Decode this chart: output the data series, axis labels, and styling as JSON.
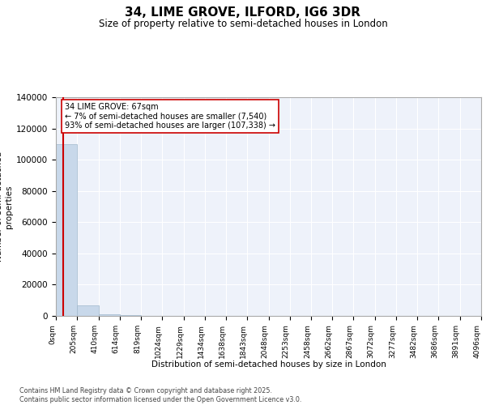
{
  "title": "34, LIME GROVE, ILFORD, IG6 3DR",
  "subtitle": "Size of property relative to semi-detached houses in London",
  "xlabel": "Distribution of semi-detached houses by size in London",
  "ylabel": "Number of semi-detached\nproperties",
  "bin_edges": [
    0,
    205,
    410,
    614,
    819,
    1024,
    1229,
    1434,
    1638,
    1843,
    2048,
    2253,
    2458,
    2662,
    2867,
    3072,
    3277,
    3482,
    3686,
    3891,
    4096
  ],
  "bar_heights": [
    110000,
    7000,
    1200,
    350,
    150,
    80,
    50,
    35,
    25,
    18,
    13,
    10,
    8,
    7,
    6,
    5,
    4,
    3,
    3,
    2
  ],
  "bar_color": "#c8d8ea",
  "bar_edge_color": "#a0b8cc",
  "property_size": 67,
  "property_line_color": "#cc0000",
  "annotation_text": "34 LIME GROVE: 67sqm\n← 7% of semi-detached houses are smaller (7,540)\n93% of semi-detached houses are larger (107,338) →",
  "annotation_box_color": "#ffffff",
  "annotation_border_color": "#cc0000",
  "ylim": [
    0,
    140000
  ],
  "yticks": [
    0,
    20000,
    40000,
    60000,
    80000,
    100000,
    120000,
    140000
  ],
  "background_color": "#eef2fa",
  "footer_text": "Contains HM Land Registry data © Crown copyright and database right 2025.\nContains public sector information licensed under the Open Government Licence v3.0.",
  "tick_label_rotation": 90,
  "grid_color": "#ffffff",
  "fig_bg_color": "#ffffff"
}
